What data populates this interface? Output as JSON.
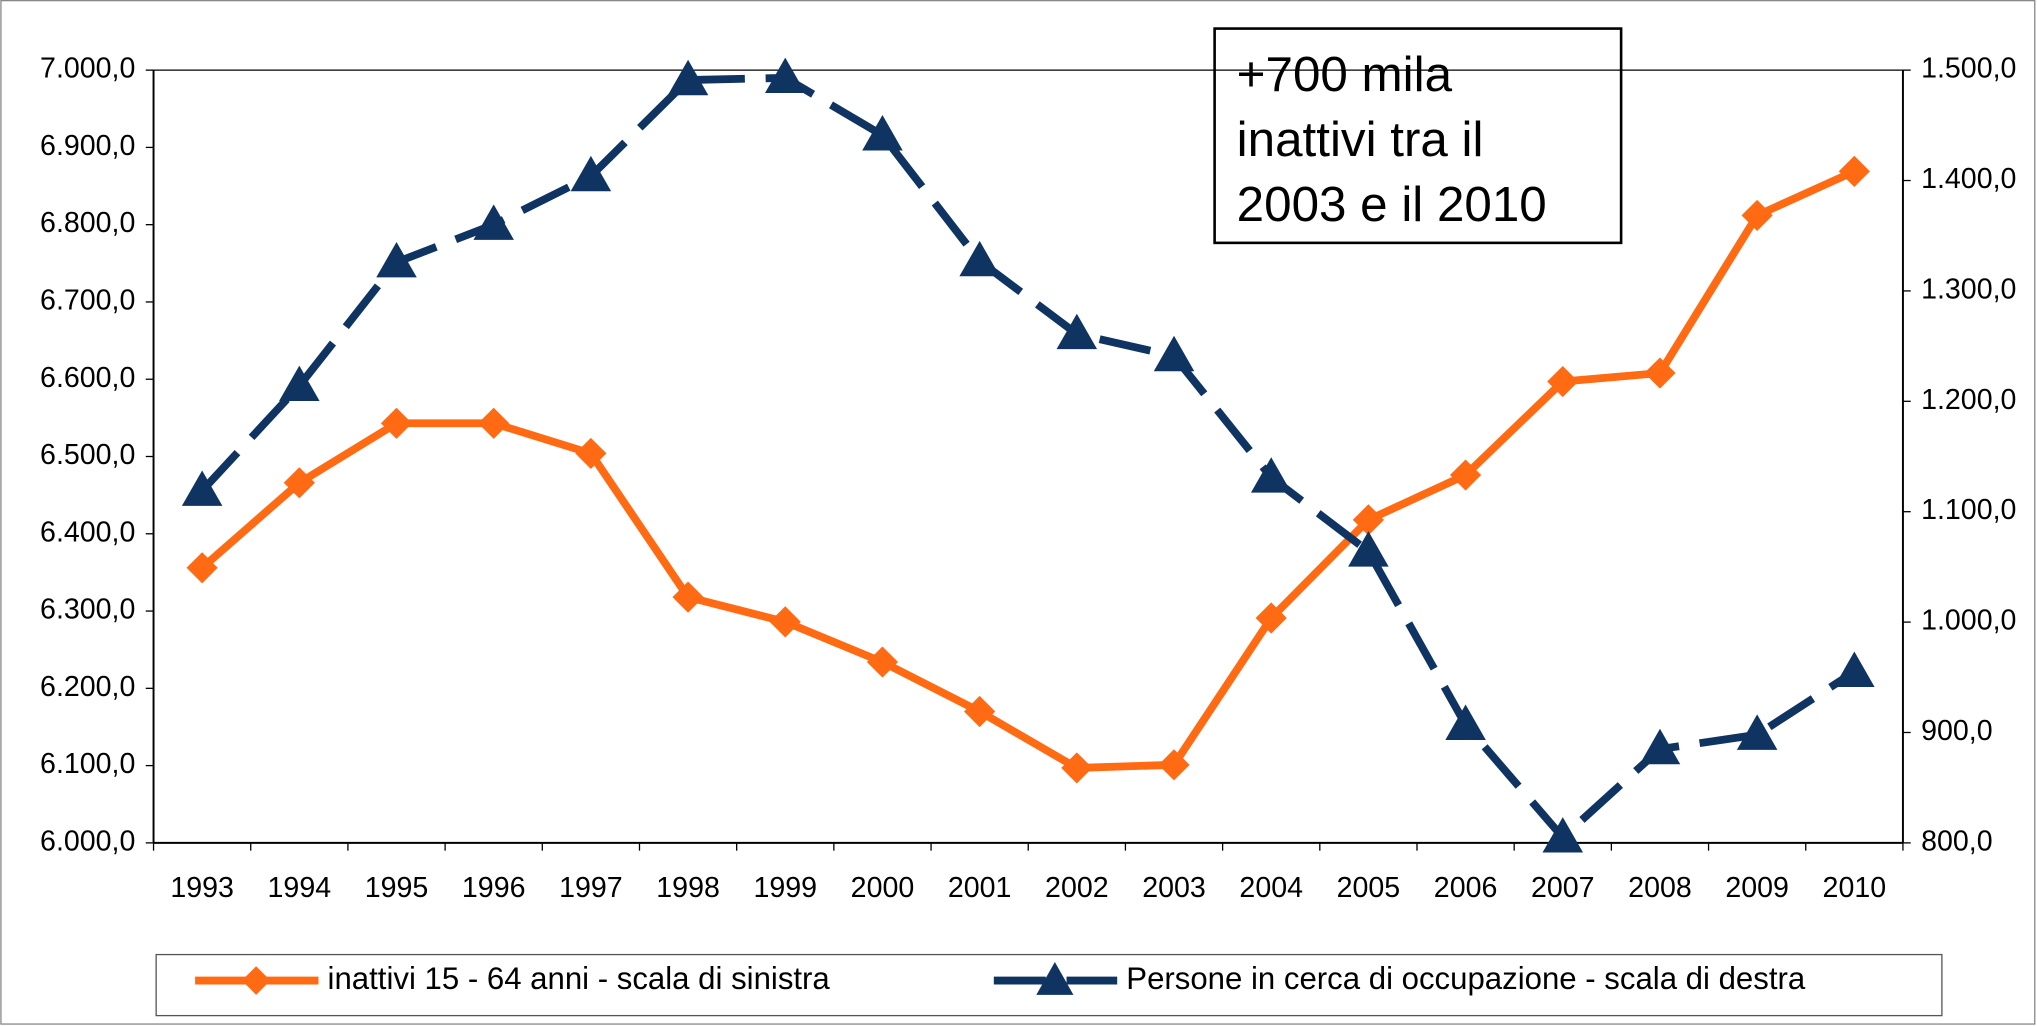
{
  "chart_data": {
    "type": "line",
    "categories": [
      "1993",
      "1994",
      "1995",
      "1996",
      "1997",
      "1998",
      "1999",
      "2000",
      "2001",
      "2002",
      "2003",
      "2004",
      "2005",
      "2006",
      "2007",
      "2008",
      "2009",
      "2010"
    ],
    "series": [
      {
        "name": "inattivi 15 - 64 anni - scala di sinistra",
        "color": "#ff6a13",
        "marker": "diamond",
        "values": [
          6356,
          6466,
          6543,
          6543,
          6504,
          6318,
          6286,
          6234,
          6170,
          6097,
          6101,
          6291,
          6418,
          6476,
          6597,
          6608,
          6812,
          6869
        ]
      },
      {
        "name": "Persone in cerca di occupazione - scala di destra",
        "color": "#0f3462",
        "marker": "triangle",
        "dashed": true,
        "axis": "y2",
        "values": [
          1119,
          1214,
          1326,
          1360,
          1404,
          1491,
          1493,
          1441,
          1327,
          1261,
          1241,
          1131,
          1064,
          907,
          805,
          885,
          898,
          955
        ]
      }
    ],
    "ylim": [
      6000,
      7000
    ],
    "yticks": [
      {
        "value": 6000,
        "label": "6.000,0"
      },
      {
        "value": 6100,
        "label": "6.100,0"
      },
      {
        "value": 6200,
        "label": "6.200,0"
      },
      {
        "value": 6300,
        "label": "6.300,0"
      },
      {
        "value": 6400,
        "label": "6.400,0"
      },
      {
        "value": 6500,
        "label": "6.500,0"
      },
      {
        "value": 6600,
        "label": "6.600,0"
      },
      {
        "value": 6700,
        "label": "6.700,0"
      },
      {
        "value": 6800,
        "label": "6.800,0"
      },
      {
        "value": 6900,
        "label": "6.900,0"
      },
      {
        "value": 7000,
        "label": "7.000,0"
      }
    ],
    "y2lim": [
      800,
      1500
    ],
    "y2ticks": [
      {
        "value": 800,
        "label": "800,0"
      },
      {
        "value": 900,
        "label": "900,0"
      },
      {
        "value": 1000,
        "label": "1.000,0"
      },
      {
        "value": 1100,
        "label": "1.100,0"
      },
      {
        "value": 1200,
        "label": "1.200,0"
      },
      {
        "value": 1300,
        "label": "1.300,0"
      },
      {
        "value": 1400,
        "label": "1.400,0"
      },
      {
        "value": 1500,
        "label": "1.500,0"
      }
    ],
    "annotation": [
      "+700 mila",
      "inattivi tra il",
      "2003 e il 2010"
    ],
    "legend": "bottom",
    "grid": false
  }
}
